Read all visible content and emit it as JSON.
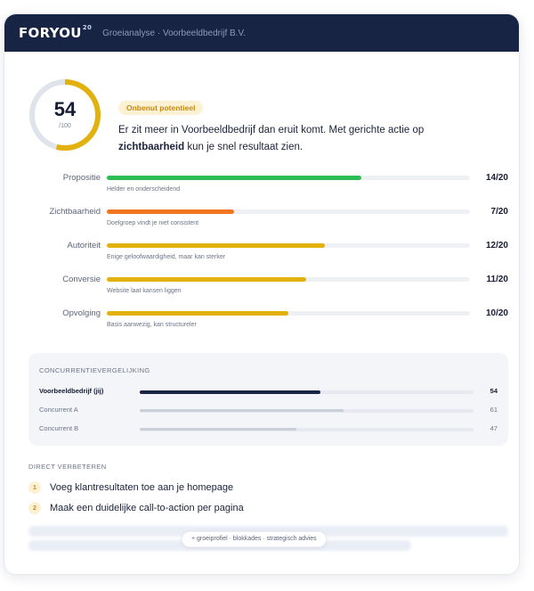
{
  "header": {
    "logo": "FORYOU",
    "logo_mark": "20",
    "subtitle": "Groeianalyse · Voorbeeldbedrijf B.V."
  },
  "score": {
    "value": "54",
    "max_label": "/100",
    "fraction": 0.54,
    "badge": "Onbenut potentieel",
    "summary_part1": "Er zit meer in Voorbeeldbedrijf dan eruit komt. Met gerichte actie op ",
    "summary_bold": "zichtbaarheid",
    "summary_part2": " kun je snel resultaat zien."
  },
  "metrics": [
    {
      "label": "Propositie",
      "score": "14/20",
      "value": 14,
      "max": 20,
      "description": "Helder en onderscheidend",
      "color": "#2dbd55"
    },
    {
      "label": "Zichtbaarheid",
      "score": "7/20",
      "value": 7,
      "max": 20,
      "description": "Doelgroep vindt je niet consistent",
      "color": "#f07622"
    },
    {
      "label": "Autoriteit",
      "score": "12/20",
      "value": 12,
      "max": 20,
      "description": "Enige geloofwaardigheid, maar kan sterker",
      "color": "#e3b10e"
    },
    {
      "label": "Conversie",
      "score": "11/20",
      "value": 11,
      "max": 20,
      "description": "Website laat kansen liggen",
      "color": "#e3b10e"
    },
    {
      "label": "Opvolging",
      "score": "10/20",
      "value": 10,
      "max": 20,
      "description": "Basis aanwezig, kan structureler",
      "color": "#e3b10e"
    }
  ],
  "comparison": {
    "title": "CONCURRENTIEVERGELIJKING",
    "rows": [
      {
        "name": "Voorbeeldbedrijf (jij)",
        "value": "54",
        "num": 54,
        "highlight": true
      },
      {
        "name": "Concurrent A",
        "value": "61",
        "num": 61,
        "highlight": false
      },
      {
        "name": "Concurrent B",
        "value": "47",
        "num": 47,
        "highlight": false
      }
    ]
  },
  "improvements": {
    "title": "DIRECT VERBETEREN",
    "items": [
      {
        "num": "1",
        "text": "Voeg klantresultaten toe aan je homepage"
      },
      {
        "num": "2",
        "text": "Maak een duidelijke call-to-action per pagina"
      }
    ],
    "more_label": "+ groeiprofiel · blokkades · strategisch advies"
  },
  "colors": {
    "header_bg": "#172443",
    "gauge_fill": "#e3b10e",
    "gauge_track": "#dfe3ea",
    "comp_highlight": "#172443",
    "comp_muted": "#c9ced8"
  }
}
